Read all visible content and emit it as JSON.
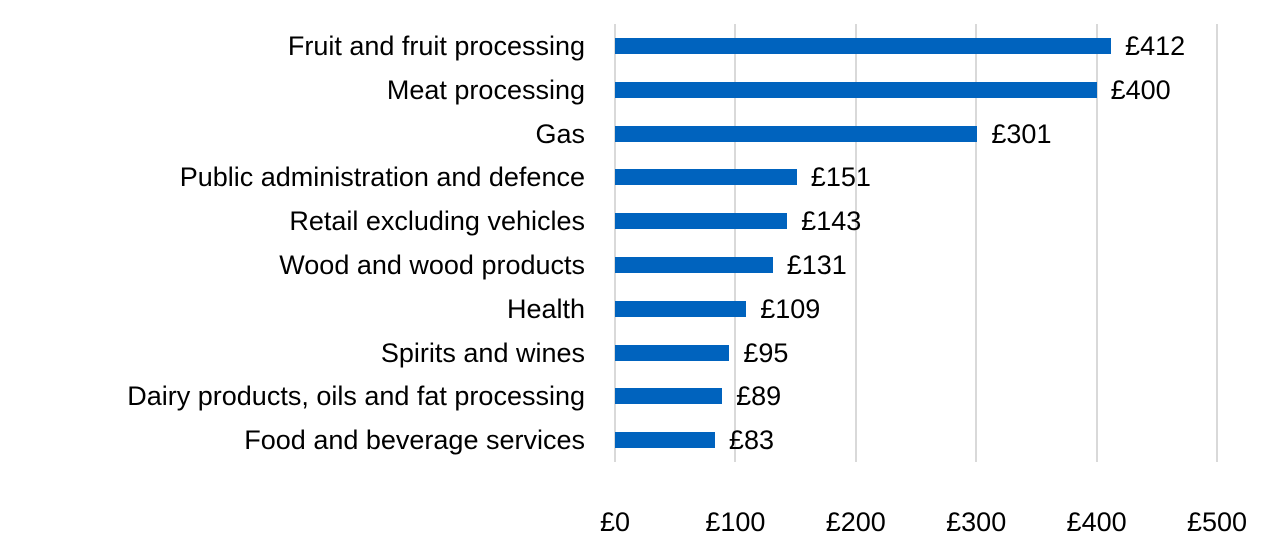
{
  "chart_data": {
    "type": "bar",
    "orientation": "horizontal",
    "title": "",
    "xlabel": "",
    "ylabel": "",
    "categories": [
      "Fruit and fruit processing",
      "Meat processing",
      "Gas",
      "Public administration and defence",
      "Retail excluding vehicles",
      "Wood and wood products",
      "Health",
      "Spirits and wines",
      "Dairy products, oils and fat processing",
      "Food and beverage services"
    ],
    "values": [
      412,
      400,
      301,
      151,
      143,
      131,
      109,
      95,
      89,
      83
    ],
    "value_labels": [
      "£412",
      "£400",
      "£301",
      "£151",
      "£143",
      "£131",
      "£109",
      "£95",
      "£89",
      "£83"
    ],
    "xlim": [
      0,
      500
    ],
    "x_ticks": [
      "£0",
      "£100",
      "£200",
      "£300",
      "£400",
      "£500"
    ],
    "grid": "vertical",
    "legend": null,
    "bar_color": "#0063be"
  }
}
